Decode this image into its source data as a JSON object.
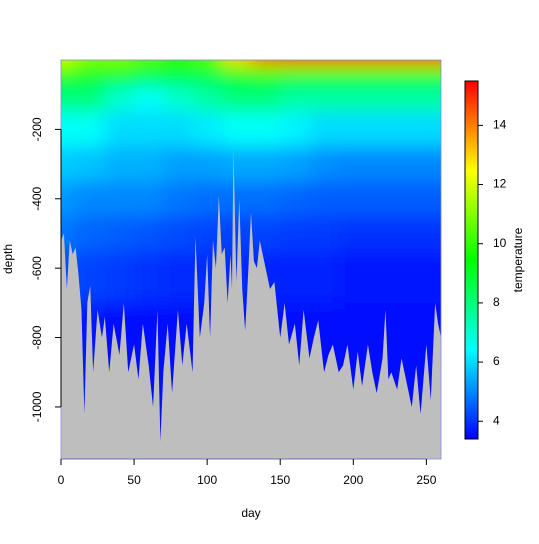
{
  "chart_data": {
    "type": "contour",
    "x_label": "day",
    "y_label": "depth",
    "colorbar_label": "temperature",
    "xlim": [
      0,
      260
    ],
    "xticks": [
      0,
      50,
      100,
      150,
      200,
      250
    ],
    "ylim": [
      -1150,
      0
    ],
    "yticks": [
      -1000,
      -800,
      -600,
      -400,
      -200
    ],
    "zlim": [
      3.4,
      15.5
    ],
    "zticks": [
      4,
      6,
      8,
      10,
      12,
      14
    ],
    "palette": [
      "#0000ff",
      "#00ffff",
      "#00ff00",
      "#ffff00",
      "#ff0000"
    ],
    "grid_days": [
      0,
      20,
      40,
      60,
      80,
      100,
      120,
      140,
      160,
      180,
      200,
      220,
      240,
      260
    ],
    "grid_depths": [
      0,
      -25,
      -50,
      -100,
      -200,
      -300,
      -400,
      -500,
      -600,
      -800,
      -1150
    ],
    "temperature": [
      [
        12,
        11,
        11,
        10.5,
        10,
        10.5,
        13,
        14.5,
        15,
        15,
        15,
        15,
        15,
        15
      ],
      [
        10.5,
        10,
        10,
        9.5,
        9.5,
        9.5,
        10,
        10.5,
        10.5,
        10.5,
        10.5,
        10.5,
        10.5,
        10.5
      ],
      [
        9.5,
        9,
        9,
        8.5,
        8.5,
        8.5,
        9,
        9.5,
        9,
        9,
        9,
        9,
        9,
        9
      ],
      [
        8,
        8,
        7,
        6.5,
        7,
        7.5,
        8,
        8,
        7.5,
        7.5,
        7.5,
        7.5,
        7.5,
        7.5
      ],
      [
        6.5,
        6.5,
        6,
        6,
        6,
        6.2,
        6.5,
        6.5,
        6.3,
        6,
        6,
        6,
        6,
        6
      ],
      [
        5.8,
        5.7,
        5.5,
        5.5,
        5.3,
        5.3,
        5.4,
        5.4,
        5.3,
        5.1,
        5,
        5,
        5,
        5
      ],
      [
        5.2,
        5,
        5,
        5,
        4.8,
        4.7,
        4.7,
        4.7,
        4.6,
        4.5,
        4.5,
        4.5,
        4.5,
        4.5
      ],
      [
        4.8,
        4.6,
        4.5,
        4.4,
        4.3,
        4.2,
        4.2,
        4.2,
        4.1,
        4.1,
        4,
        4,
        4,
        4
      ],
      [
        4.3,
        4.2,
        4.1,
        4,
        3.9,
        3.9,
        3.9,
        3.8,
        3.8,
        3.8,
        3.7,
        3.7,
        3.7,
        3.7
      ],
      [
        3.8,
        3.7,
        3.6,
        3.6,
        3.6,
        3.6,
        3.6,
        3.6,
        3.5,
        3.5,
        3.5,
        3.5,
        3.5,
        3.5
      ],
      [
        3.5,
        3.5,
        3.5,
        3.5,
        3.4,
        3.4,
        3.4,
        3.4,
        3.4,
        3.4,
        3.4,
        3.4,
        3.4,
        3.4
      ]
    ],
    "bottom": {
      "color": "#bebebe",
      "day": [
        0,
        2,
        4,
        6,
        8,
        10,
        12,
        14,
        16,
        18,
        20,
        22,
        25,
        28,
        30,
        33,
        36,
        40,
        43,
        46,
        50,
        53,
        56,
        60,
        63,
        66,
        68,
        70,
        73,
        76,
        80,
        83,
        86,
        90,
        92,
        95,
        98,
        100,
        102,
        104,
        106,
        108,
        110,
        112,
        114,
        116,
        117,
        118,
        120,
        122,
        124,
        126,
        128,
        130,
        132,
        134,
        136,
        140,
        143,
        146,
        150,
        153,
        156,
        160,
        163,
        166,
        170,
        173,
        176,
        180,
        183,
        186,
        190,
        193,
        196,
        200,
        203,
        206,
        210,
        213,
        216,
        220,
        222,
        224,
        226,
        230,
        233,
        236,
        240,
        243,
        246,
        250,
        253,
        256,
        258,
        260
      ],
      "depth": [
        -520,
        -500,
        -660,
        -520,
        -560,
        -540,
        -620,
        -720,
        -1020,
        -700,
        -650,
        -900,
        -720,
        -800,
        -740,
        -900,
        -760,
        -850,
        -700,
        -900,
        -820,
        -920,
        -760,
        -880,
        -1000,
        -720,
        -1100,
        -900,
        -760,
        -960,
        -720,
        -880,
        -760,
        -900,
        -510,
        -800,
        -700,
        -560,
        -800,
        -520,
        -600,
        -390,
        -560,
        -540,
        -700,
        -560,
        -660,
        -250,
        -640,
        -400,
        -660,
        -780,
        -620,
        -440,
        -580,
        -600,
        -520,
        -600,
        -660,
        -640,
        -800,
        -700,
        -820,
        -760,
        -880,
        -720,
        -860,
        -800,
        -750,
        -900,
        -850,
        -820,
        -900,
        -880,
        -820,
        -950,
        -840,
        -940,
        -820,
        -900,
        -960,
        -860,
        -720,
        -920,
        -900,
        -950,
        -860,
        -920,
        -1000,
        -880,
        -1020,
        -820,
        -980,
        -700,
        -760,
        -800
      ]
    }
  }
}
